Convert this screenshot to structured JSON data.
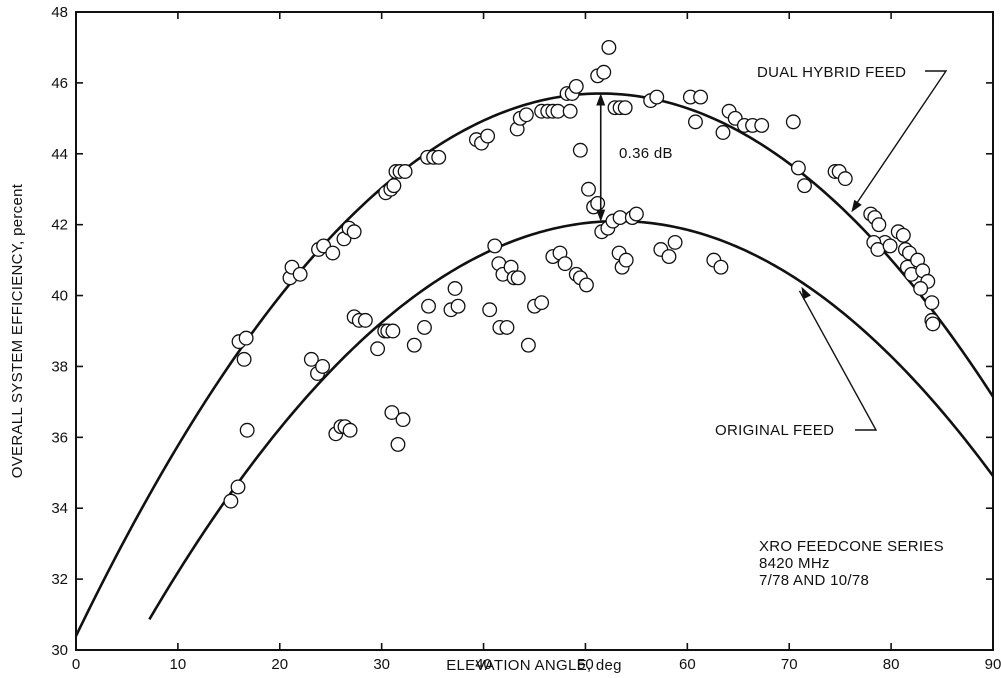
{
  "chart_data": {
    "type": "scatter",
    "xlabel": "ELEVATION ANGLE, deg",
    "ylabel": "OVERALL SYSTEM EFFICIENCY, percent",
    "xlim": [
      0,
      90
    ],
    "ylim": [
      30,
      48
    ],
    "x_ticks": [
      0,
      10,
      20,
      30,
      40,
      50,
      60,
      70,
      80,
      90
    ],
    "y_ticks": [
      30,
      32,
      34,
      36,
      38,
      40,
      42,
      44,
      46,
      48
    ],
    "grid": false,
    "legend": "none",
    "curves": [
      {
        "name": "DUAL HYBRID FEED",
        "vertex_x": 51.5,
        "vertex_y": 45.7,
        "a": 0.00577,
        "x_range": [
          0,
          90
        ]
      },
      {
        "name": "ORIGINAL FEED",
        "vertex_x": 53.2,
        "vertex_y": 42.1,
        "a": 0.00531,
        "x_range": [
          7.2,
          90
        ]
      }
    ],
    "annotations": {
      "difference": "0.36 dB",
      "dual_label": "DUAL HYBRID FEED",
      "original_label": "ORIGINAL FEED",
      "info": [
        "XRO FEEDCONE SERIES",
        "8420 MHz",
        "7/78 AND 10/78"
      ]
    },
    "series": [
      {
        "name": "DUAL HYBRID FEED",
        "points": [
          [
            16.0,
            38.7
          ],
          [
            16.7,
            38.8
          ],
          [
            16.5,
            38.2
          ],
          [
            16.8,
            36.2
          ],
          [
            21.0,
            40.5
          ],
          [
            21.2,
            40.8
          ],
          [
            22.0,
            40.6
          ],
          [
            23.8,
            41.3
          ],
          [
            24.3,
            41.4
          ],
          [
            25.2,
            41.2
          ],
          [
            26.3,
            41.6
          ],
          [
            26.8,
            41.9
          ],
          [
            27.3,
            41.8
          ],
          [
            30.4,
            42.9
          ],
          [
            30.9,
            43.0
          ],
          [
            31.2,
            43.1
          ],
          [
            31.4,
            43.5
          ],
          [
            31.8,
            43.5
          ],
          [
            32.3,
            43.5
          ],
          [
            34.5,
            43.9
          ],
          [
            35.1,
            43.9
          ],
          [
            35.6,
            43.9
          ],
          [
            39.3,
            44.4
          ],
          [
            39.8,
            44.3
          ],
          [
            40.4,
            44.5
          ],
          [
            43.3,
            44.7
          ],
          [
            43.6,
            45.0
          ],
          [
            44.2,
            45.1
          ],
          [
            45.7,
            45.2
          ],
          [
            46.3,
            45.2
          ],
          [
            46.8,
            45.2
          ],
          [
            47.3,
            45.2
          ],
          [
            48.2,
            45.7
          ],
          [
            48.7,
            45.7
          ],
          [
            48.5,
            45.2
          ],
          [
            49.1,
            45.9
          ],
          [
            49.5,
            44.1
          ],
          [
            51.2,
            46.2
          ],
          [
            51.8,
            46.3
          ],
          [
            52.3,
            47.0
          ],
          [
            52.9,
            45.3
          ],
          [
            53.4,
            45.3
          ],
          [
            53.9,
            45.3
          ],
          [
            56.4,
            45.5
          ],
          [
            57.0,
            45.6
          ],
          [
            60.3,
            45.6
          ],
          [
            61.3,
            45.6
          ],
          [
            60.8,
            44.9
          ],
          [
            63.5,
            44.6
          ],
          [
            64.1,
            45.2
          ],
          [
            64.7,
            45.0
          ],
          [
            65.6,
            44.8
          ],
          [
            66.4,
            44.8
          ],
          [
            67.3,
            44.8
          ],
          [
            70.4,
            44.9
          ],
          [
            70.9,
            43.6
          ],
          [
            71.5,
            43.1
          ],
          [
            74.5,
            43.5
          ],
          [
            74.9,
            43.5
          ],
          [
            75.5,
            43.3
          ],
          [
            78.0,
            42.3
          ],
          [
            78.4,
            42.2
          ],
          [
            78.8,
            42.0
          ],
          [
            79.4,
            41.5
          ],
          [
            78.3,
            41.5
          ],
          [
            78.7,
            41.3
          ],
          [
            79.9,
            41.4
          ],
          [
            80.7,
            41.8
          ],
          [
            81.2,
            41.7
          ],
          [
            81.4,
            41.3
          ],
          [
            81.8,
            41.2
          ],
          [
            81.6,
            40.8
          ],
          [
            82.0,
            40.6
          ],
          [
            82.6,
            41.0
          ],
          [
            83.1,
            40.7
          ],
          [
            83.6,
            40.4
          ],
          [
            82.9,
            40.2
          ],
          [
            84.0,
            39.8
          ],
          [
            84.0,
            39.3
          ],
          [
            84.1,
            39.2
          ]
        ]
      },
      {
        "name": "ORIGINAL FEED",
        "points": [
          [
            15.2,
            34.2
          ],
          [
            15.9,
            34.6
          ],
          [
            23.1,
            38.2
          ],
          [
            23.7,
            37.8
          ],
          [
            24.2,
            38.0
          ],
          [
            25.5,
            36.1
          ],
          [
            26.0,
            36.3
          ],
          [
            26.4,
            36.3
          ],
          [
            26.9,
            36.2
          ],
          [
            27.3,
            39.4
          ],
          [
            27.8,
            39.3
          ],
          [
            28.4,
            39.3
          ],
          [
            29.6,
            38.5
          ],
          [
            30.3,
            39.0
          ],
          [
            30.6,
            39.0
          ],
          [
            31.1,
            39.0
          ],
          [
            31.0,
            36.7
          ],
          [
            31.6,
            35.8
          ],
          [
            32.1,
            36.5
          ],
          [
            33.2,
            38.6
          ],
          [
            34.2,
            39.1
          ],
          [
            34.6,
            39.7
          ],
          [
            36.8,
            39.6
          ],
          [
            37.2,
            40.2
          ],
          [
            37.5,
            39.7
          ],
          [
            40.6,
            39.6
          ],
          [
            41.1,
            41.4
          ],
          [
            41.5,
            40.9
          ],
          [
            41.9,
            40.6
          ],
          [
            41.6,
            39.1
          ],
          [
            42.3,
            39.1
          ],
          [
            42.7,
            40.8
          ],
          [
            43.0,
            40.5
          ],
          [
            43.4,
            40.5
          ],
          [
            44.4,
            38.6
          ],
          [
            45.0,
            39.7
          ],
          [
            45.7,
            39.8
          ],
          [
            46.8,
            41.1
          ],
          [
            47.5,
            41.2
          ],
          [
            48.0,
            40.9
          ],
          [
            49.1,
            40.6
          ],
          [
            49.5,
            40.5
          ],
          [
            50.1,
            40.3
          ],
          [
            50.3,
            43.0
          ],
          [
            50.8,
            42.5
          ],
          [
            51.2,
            42.6
          ],
          [
            51.6,
            41.8
          ],
          [
            52.2,
            41.9
          ],
          [
            52.7,
            42.1
          ],
          [
            53.4,
            42.2
          ],
          [
            53.3,
            41.2
          ],
          [
            53.6,
            40.8
          ],
          [
            54.0,
            41.0
          ],
          [
            54.6,
            42.2
          ],
          [
            55.0,
            42.3
          ],
          [
            57.4,
            41.3
          ],
          [
            58.2,
            41.1
          ],
          [
            58.8,
            41.5
          ],
          [
            62.6,
            41.0
          ],
          [
            63.3,
            40.8
          ]
        ]
      }
    ]
  }
}
